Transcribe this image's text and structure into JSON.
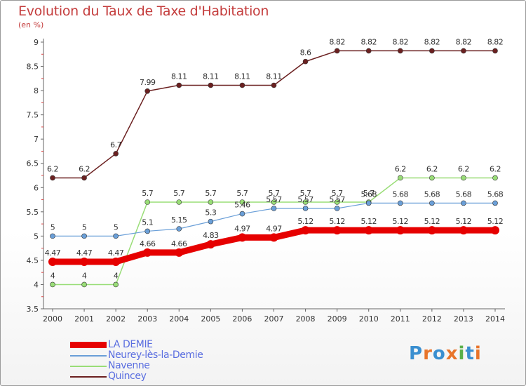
{
  "chart_data": {
    "type": "line",
    "title": "Evolution du Taux de Taxe d'Habitation",
    "subtitle": "(en %)",
    "categories": [
      "2000",
      "2001",
      "2002",
      "2003",
      "2004",
      "2005",
      "2006",
      "2007",
      "2008",
      "2009",
      "2010",
      "2011",
      "2012",
      "2013",
      "2014"
    ],
    "ylim": [
      3.5,
      9
    ],
    "y_ticks": [
      "3.5",
      "4",
      "4.5",
      "5",
      "5.5",
      "6",
      "6.5",
      "7",
      "7.5",
      "8",
      "8.5",
      "9"
    ],
    "grid": false,
    "legend_position": "bottom-left",
    "series": [
      {
        "name": "LA DEMIE",
        "color": "#e60000",
        "values": [
          4.47,
          4.47,
          4.47,
          4.66,
          4.66,
          4.83,
          4.97,
          4.97,
          5.12,
          5.12,
          5.12,
          5.12,
          5.12,
          5.12,
          5.12
        ],
        "labels": [
          "4.47",
          "4.47",
          "4.47",
          "4.66",
          "4.66",
          "4.83",
          "4.97",
          "4.97",
          "5.12",
          "5.12",
          "5.12",
          "5.12",
          "5.12",
          "5.12",
          "5.12"
        ]
      },
      {
        "name": "Neurey-lès-la-Demie",
        "color": "#6a9fd8",
        "values": [
          5,
          5,
          5,
          5.1,
          5.15,
          5.3,
          5.46,
          5.57,
          5.57,
          5.57,
          5.68,
          5.68,
          5.68,
          5.68,
          5.68
        ],
        "labels": [
          "5",
          "5",
          "5",
          "5.1",
          "5.15",
          "5.3",
          "5.46",
          "5.57",
          "5.57",
          "5.57",
          "5.68",
          "5.68",
          "5.68",
          "5.68",
          "5.68"
        ]
      },
      {
        "name": "Navenne",
        "color": "#99dd77",
        "values": [
          4,
          4,
          4,
          5.7,
          5.7,
          5.7,
          5.7,
          5.7,
          5.7,
          5.7,
          5.7,
          6.2,
          6.2,
          6.2,
          6.2
        ],
        "labels": [
          "4",
          "4",
          "4",
          "5.7",
          "5.7",
          "5.7",
          "5.7",
          "5.7",
          "5.7",
          "5.7",
          "5.7",
          "6.2",
          "6.2",
          "6.2",
          "6.2"
        ]
      },
      {
        "name": "Quincey",
        "color": "#6b2020",
        "values": [
          6.2,
          6.2,
          6.7,
          7.99,
          8.11,
          8.11,
          8.11,
          8.11,
          8.6,
          8.82,
          8.82,
          8.82,
          8.82,
          8.82,
          8.82
        ],
        "labels": [
          "6.2",
          "6.2",
          "6.7",
          "7.99",
          "8.11",
          "8.11",
          "8.11",
          "8.11",
          "8.6",
          "8.82",
          "8.82",
          "8.82",
          "8.82",
          "8.82",
          "8.82"
        ]
      }
    ]
  },
  "logo": {
    "text": "Proxiti"
  }
}
